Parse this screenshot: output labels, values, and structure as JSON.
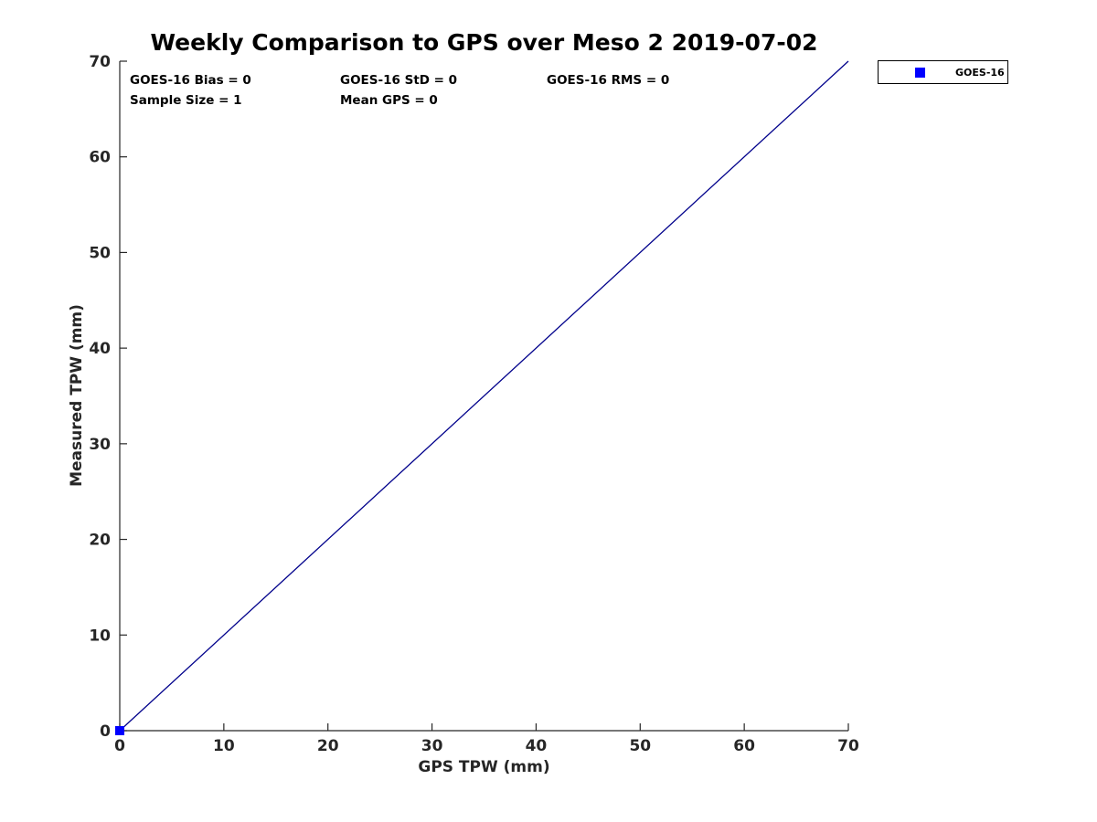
{
  "title": "Weekly Comparison to GPS over Meso 2 2019-07-02",
  "stats": {
    "bias": "GOES-16 Bias = 0",
    "std": "GOES-16 StD = 0",
    "rms": "GOES-16 RMS = 0",
    "sample_size": "Sample Size = 1",
    "mean_gps": "Mean GPS = 0"
  },
  "legend": {
    "label": "GOES-16",
    "marker_color": "#0000ff",
    "position": "top-right-outside"
  },
  "colors": {
    "identity_line": "#00008b",
    "marker": "#0000ff",
    "axis": "#262626",
    "text": "#000000",
    "background": "#ffffff"
  },
  "chart_data": {
    "type": "scatter",
    "title": "Weekly Comparison to GPS over Meso 2 2019-07-02",
    "xlabel": "GPS TPW (mm)",
    "ylabel": "Measured TPW (mm)",
    "xlim": [
      0,
      70
    ],
    "ylim": [
      0,
      70
    ],
    "xticks": [
      0,
      10,
      20,
      30,
      40,
      50,
      60,
      70
    ],
    "yticks": [
      0,
      10,
      20,
      30,
      40,
      50,
      60,
      70
    ],
    "grid": false,
    "legend_position": "top-right-outside",
    "series": [
      {
        "name": "identity-line",
        "kind": "line",
        "color": "#00008b",
        "points": [
          [
            0,
            0
          ],
          [
            70,
            70
          ]
        ]
      },
      {
        "name": "GOES-16",
        "kind": "scatter",
        "marker": "square",
        "color": "#0000ff",
        "points": [
          [
            0,
            0
          ]
        ]
      }
    ]
  }
}
